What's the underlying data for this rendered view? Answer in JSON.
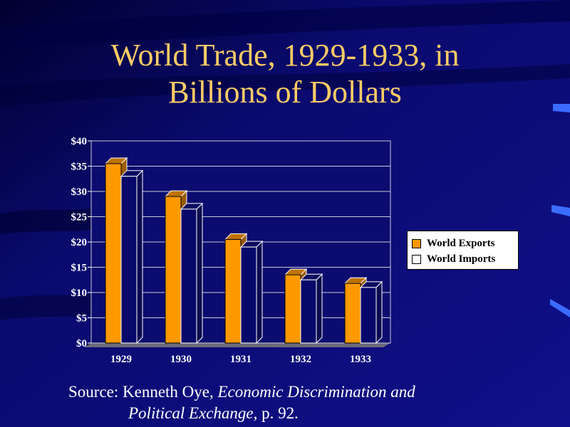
{
  "slide": {
    "title_line1": "World Trade, 1929-1933, in",
    "title_line2": "Billions of Dollars",
    "source_prefix": "Source: Kenneth Oye, ",
    "source_book_part1": "Economic Discrimination and",
    "source_book_part2": "Political Exchange",
    "source_suffix": ", p. 92."
  },
  "chart_data": {
    "type": "bar",
    "categories": [
      "1929",
      "1930",
      "1931",
      "1932",
      "1933"
    ],
    "series": [
      {
        "name": "World Exports",
        "color": "#ff9900",
        "values": [
          35.5,
          29,
          20.5,
          13.5,
          11.8
        ]
      },
      {
        "name": "World Imports",
        "color": "#ffffff",
        "values": [
          33,
          26.5,
          19,
          12.5,
          11
        ]
      }
    ],
    "ylim": [
      0,
      40
    ],
    "yticks": [
      "$0",
      "$5",
      "$10",
      "$15",
      "$20",
      "$25",
      "$30",
      "$35",
      "$40"
    ],
    "ytick_values": [
      0,
      5,
      10,
      15,
      20,
      25,
      30,
      35,
      40
    ],
    "grid": true,
    "legend_position": "right"
  }
}
